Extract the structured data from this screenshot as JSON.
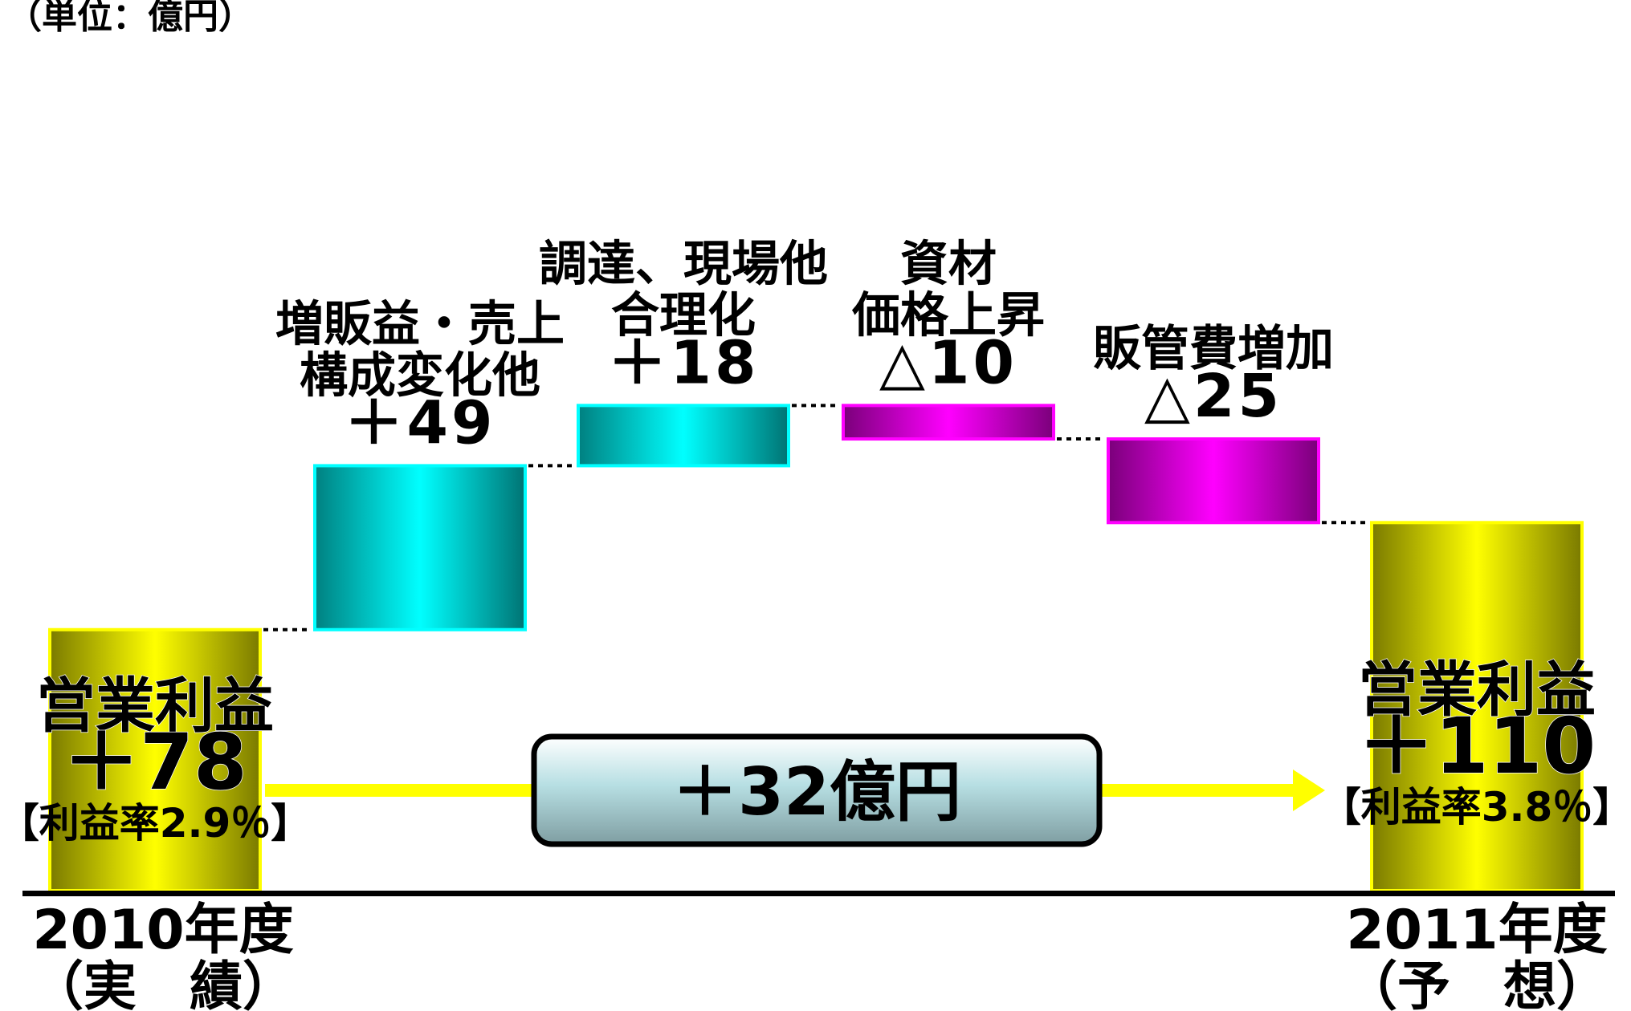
{
  "chart_data": {
    "type": "waterfall",
    "unit_label": "（単位：億円）",
    "colors": {
      "yellow": "#ffff00",
      "cyan": "#00ffff",
      "magenta": "#ff00ff",
      "connector": "#000000",
      "summary_box": "#b7dfe3",
      "arrow": "#ffff00"
    },
    "steps": [
      {
        "kind": "total",
        "value": 78,
        "color": "yellow",
        "inner_lines": [
          "営業利益",
          "＋78"
        ],
        "inner_sub": "【利益率2.9％】",
        "axis_lines": [
          "2010年度",
          "（実　績）"
        ]
      },
      {
        "kind": "delta",
        "value": 49,
        "color": "cyan",
        "label_lines": [
          "増販益・売上",
          "構成変化他",
          "＋49"
        ]
      },
      {
        "kind": "delta",
        "value": 18,
        "color": "cyan",
        "label_lines": [
          "調達、現場他",
          "合理化",
          "＋18"
        ]
      },
      {
        "kind": "delta",
        "value": -10,
        "color": "magenta",
        "label_lines": [
          "資材",
          "価格上昇",
          "△10"
        ]
      },
      {
        "kind": "delta",
        "value": -25,
        "color": "magenta",
        "label_lines": [
          "販管費増加",
          "△25"
        ]
      },
      {
        "kind": "total",
        "value": 110,
        "color": "yellow",
        "inner_lines": [
          "営業利益",
          "＋110"
        ],
        "inner_sub": "【利益率3.8％】",
        "axis_lines": [
          "2011年度",
          "（予　想）"
        ]
      }
    ],
    "summary": "＋32億円"
  }
}
